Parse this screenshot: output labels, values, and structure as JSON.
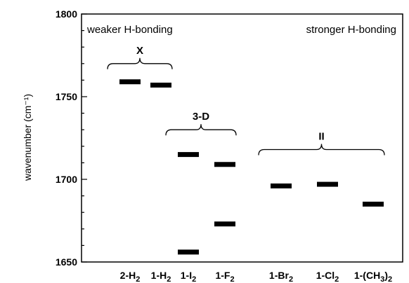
{
  "chart_data": {
    "type": "scatter",
    "ylabel": "wavenumber (cm⁻¹)",
    "ylim": [
      1650,
      1800
    ],
    "yticks": [
      1650,
      1700,
      1750,
      1800
    ],
    "grid": false,
    "categories": [
      {
        "base": "2-H",
        "sub": "2"
      },
      {
        "base": "1-H",
        "sub": "2"
      },
      {
        "base": "1-I",
        "sub": "2"
      },
      {
        "base": "1-F",
        "sub": "2"
      },
      {
        "base": "1-Br",
        "sub": "2"
      },
      {
        "base": "1-Cl",
        "sub": "2"
      },
      {
        "base": "1-(CH",
        "sub": "3",
        "tail": ")",
        "sub2": "2"
      }
    ],
    "points": [
      {
        "category_index": 0,
        "y": 1759
      },
      {
        "category_index": 1,
        "y": 1757
      },
      {
        "category_index": 2,
        "y": 1715
      },
      {
        "category_index": 2,
        "y": 1656
      },
      {
        "category_index": 3,
        "y": 1709
      },
      {
        "category_index": 3,
        "y": 1673
      },
      {
        "category_index": 4,
        "y": 1696
      },
      {
        "category_index": 5,
        "y": 1697
      },
      {
        "category_index": 6,
        "y": 1685
      }
    ],
    "annotations": {
      "left": "weaker H-bonding",
      "right": "stronger H-bonding"
    },
    "groups": [
      {
        "label": "X",
        "from_index": 0,
        "to_index": 1,
        "y": 1770
      },
      {
        "label": "3-D",
        "from_index": 2,
        "to_index": 3,
        "y": 1730
      },
      {
        "label": "II",
        "from_index": 4,
        "to_index": 6,
        "y": 1718
      }
    ]
  }
}
